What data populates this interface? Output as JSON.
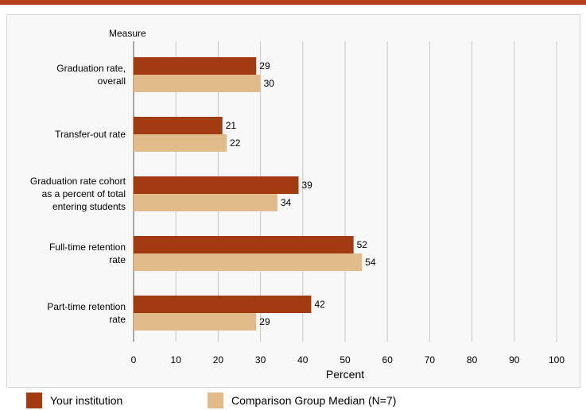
{
  "chart_data": {
    "type": "bar",
    "orientation": "horizontal",
    "ylabel": "Measure",
    "xlabel": "Percent",
    "xlim": [
      0,
      100
    ],
    "xticks": [
      0,
      10,
      20,
      30,
      40,
      50,
      60,
      70,
      80,
      90,
      100
    ],
    "grid": true,
    "legend_position": "bottom",
    "categories": [
      [
        "Graduation rate,",
        "overall"
      ],
      [
        "Transfer-out rate"
      ],
      [
        "Graduation rate cohort",
        "as a percent of total",
        "entering students"
      ],
      [
        "Full-time retention",
        "rate"
      ],
      [
        "Part-time retention",
        "rate"
      ]
    ],
    "series": [
      {
        "name": "Your institution",
        "color": "#a33b12",
        "values": [
          29,
          21,
          39,
          52,
          42
        ]
      },
      {
        "name": "Comparison Group Median (N=7)",
        "color": "#e2bb8b",
        "values": [
          30,
          22,
          34,
          54,
          29
        ]
      }
    ]
  },
  "colors": {
    "accent_rule": "#b5411a",
    "grid": "#c8c8c8",
    "frame_background": "#f8f8f8"
  }
}
